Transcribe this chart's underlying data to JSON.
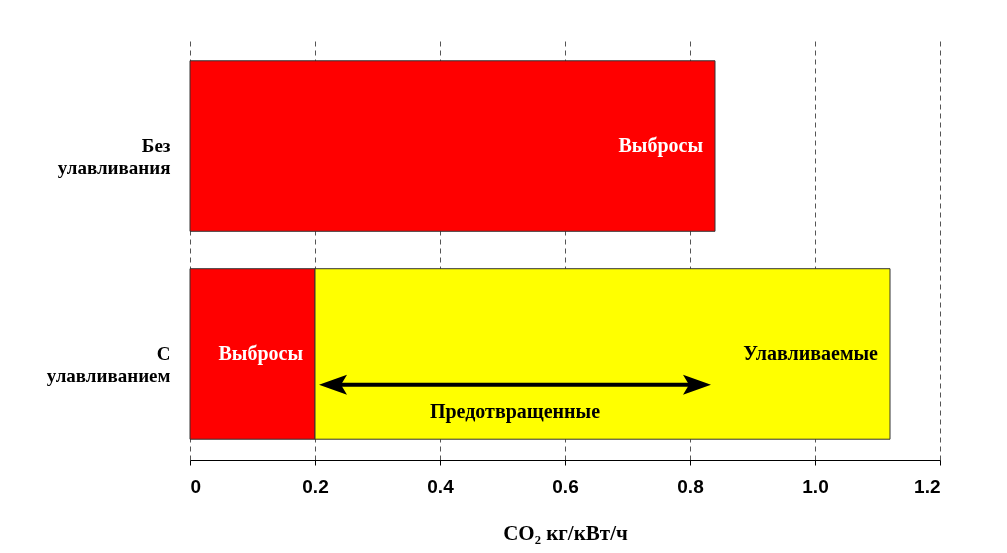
{
  "chart_data": {
    "type": "bar",
    "orientation": "horizontal",
    "stacked": true,
    "categories": [
      "Без улавливания",
      "С улавливанием"
    ],
    "series": [
      {
        "name": "Выбросы",
        "color": "#ff0000",
        "values": [
          0.84,
          0.2
        ]
      },
      {
        "name": "Улавливаемые",
        "color": "#ffff00",
        "values": [
          null,
          0.92
        ]
      }
    ],
    "xlabel": "CO₂ кг/кВт/ч",
    "xlim": [
      0,
      1.2
    ],
    "xticks": [
      0,
      0.2,
      0.4,
      0.6,
      0.8,
      {
        "value": 1,
        "label": "1.0"
      },
      1.2
    ],
    "grid": "x",
    "annotations": [
      "Предотвращенные"
    ]
  }
}
